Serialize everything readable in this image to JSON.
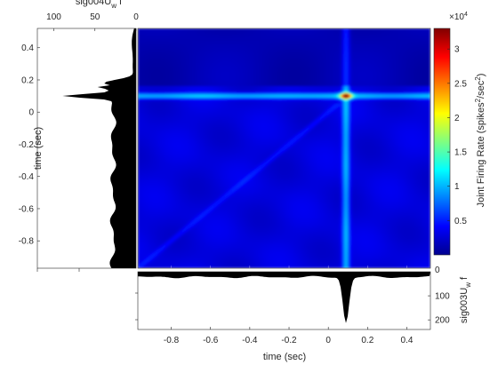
{
  "chart_data": {
    "type": "heatmap",
    "heatmap": {
      "xlim": [
        -0.97,
        0.52
      ],
      "ylim": [
        -0.97,
        0.52
      ],
      "peak": {
        "x": 0.09,
        "y": 0.1,
        "value": 32000
      },
      "background_value": 3000,
      "horizontal_band": {
        "y": 0.1,
        "value": 10500
      },
      "vertical_band": {
        "x": 0.09,
        "value": 10000
      },
      "diagonal_value": 5000,
      "x_ticks": [
        "-0.8",
        "-0.6",
        "-0.4",
        "-0.2",
        "0",
        "0.2",
        "0.4"
      ],
      "x_tick_values": [
        -0.8,
        -0.6,
        -0.4,
        -0.2,
        0,
        0.2,
        0.4
      ],
      "y_ticks": [
        "0.4",
        "0.2",
        "0",
        "-0.2",
        "-0.4",
        "-0.6",
        "-0.8"
      ],
      "y_tick_values": [
        0.4,
        0.2,
        0,
        -0.2,
        -0.4,
        -0.6,
        -0.8
      ]
    },
    "colorbar": {
      "label_parts": [
        "Joint Firing Rate (spikes",
        "2",
        "/sec",
        "2",
        ")"
      ],
      "multiplier_base": "×10",
      "multiplier_exp": "4",
      "clim": [
        0,
        3.3
      ],
      "ticks": [
        "3",
        "2.5",
        "2",
        "1.5",
        "1",
        "0.5"
      ],
      "tick_values": [
        3,
        2.5,
        2,
        1.5,
        1,
        0.5
      ],
      "colormap": "jet"
    },
    "left_hist": {
      "title_main": "sig004U",
      "title_sub": "w",
      "title_tail": " f",
      "xlim_reversed": [
        120,
        0
      ],
      "ticks": [
        "100",
        "50",
        "0"
      ],
      "tick_values": [
        100,
        50,
        0
      ],
      "ylabel": "time (sec)",
      "baseline": 28,
      "peak": {
        "t": 0.1,
        "value": 88
      },
      "shoulder": {
        "t": 0.18,
        "value": 38
      }
    },
    "bottom_hist": {
      "label_main": "sig003U",
      "label_sub": "w",
      "label_tail": " f",
      "ylim": [
        0,
        240
      ],
      "ticks": [
        "100",
        "200"
      ],
      "tick_values": [
        100,
        200
      ],
      "xlabel": "time (sec)",
      "baseline": 22,
      "peak": {
        "t": 0.09,
        "value": 212
      }
    }
  }
}
